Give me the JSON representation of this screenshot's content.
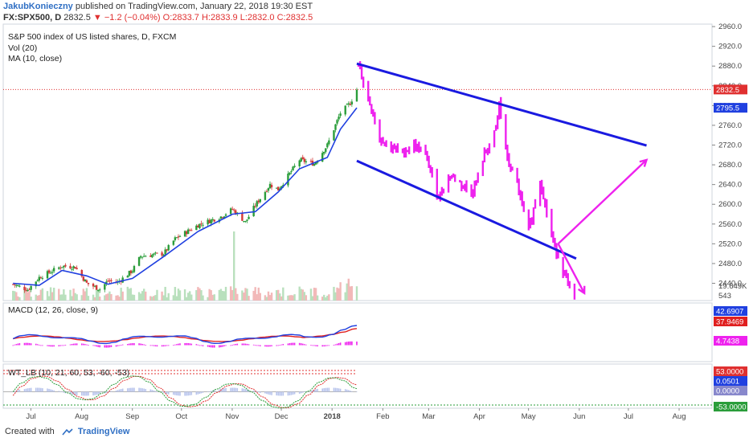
{
  "header": {
    "author": "JakubKonieczny",
    "published": "published on TradingView.com, January 22, 2018 19:30 EST",
    "symbol": "FX:SPX500, D",
    "last": "2832.5",
    "change": "−1.2 (−0.04%)",
    "open": "O:2833.7",
    "high": "H:2833.9",
    "low": "L:2832.0",
    "close": "C:2832.5"
  },
  "legends": {
    "title": "S&P 500 index of US listed shares, D, FXCM",
    "vol": "Vol (20)",
    "ma": "MA (10, close)",
    "macd": "MACD (12, 26, close, 9)",
    "wt": "WT_LB (10, 21, 60, 53, -60, -53)"
  },
  "footer": {
    "created": "Created with",
    "brand": "TradingView"
  },
  "colors": {
    "up": "#2a9d3a",
    "down": "#d33a3a",
    "ma": "#2040e0",
    "channel": "#1a1ae0",
    "projection": "#ee22ee",
    "macd_line": "#2040e0",
    "signal_line": "#e02020"
  },
  "chart_data": {
    "type": "candlestick",
    "price_axis": {
      "ticks": [
        "2960.0",
        "2920.0",
        "2880.0",
        "2840.0",
        "2800.0",
        "2760.0",
        "2720.0",
        "2680.0",
        "2640.0",
        "2600.0",
        "2560.0",
        "2520.0",
        "2480.0",
        "2440.0"
      ],
      "ylim": [
        2405,
        2965
      ]
    },
    "price_tags": [
      {
        "label": "2832.5",
        "value": 2832.5,
        "color": "#e03030"
      },
      {
        "label": "2795.5",
        "value": 2795.5,
        "color": "#2040e0"
      }
    ],
    "volume_tags": [
      {
        "label": "19.649K",
        "color": "#888888"
      },
      {
        "label": "543",
        "color": "#e08888"
      }
    ],
    "macd_tags": [
      {
        "label": "42.6907",
        "color": "#2040e0"
      },
      {
        "label": "37.9469",
        "color": "#e02020"
      },
      {
        "label": "4.7438",
        "color": "#ee22ee"
      }
    ],
    "wt_tags": [
      {
        "label": "53.0000",
        "color": "#e03030"
      },
      {
        "label": "0.0501",
        "color": "#2040e0"
      },
      {
        "label": "0.0000",
        "color": "#8888cc"
      },
      {
        "label": "-53.0000",
        "color": "#2a9d3a"
      }
    ],
    "time_axis": [
      "Jul",
      "Aug",
      "Sep",
      "Oct",
      "Nov",
      "Dec",
      "2018",
      "Feb",
      "Mar",
      "Apr",
      "May",
      "Jun",
      "Jul",
      "Aug"
    ],
    "price_series_anchors": [
      [
        "2017-06-26",
        2438
      ],
      [
        "2017-07-05",
        2427
      ],
      [
        "2017-07-12",
        2452
      ],
      [
        "2017-07-26",
        2475
      ],
      [
        "2017-08-03",
        2473
      ],
      [
        "2017-08-10",
        2440
      ],
      [
        "2017-08-18",
        2428
      ],
      [
        "2017-08-23",
        2445
      ],
      [
        "2017-08-29",
        2442
      ],
      [
        "2017-09-07",
        2466
      ],
      [
        "2017-09-12",
        2495
      ],
      [
        "2017-09-26",
        2500
      ],
      [
        "2017-10-03",
        2530
      ],
      [
        "2017-10-17",
        2558
      ],
      [
        "2017-10-31",
        2575
      ],
      [
        "2017-11-07",
        2590
      ],
      [
        "2017-11-15",
        2564
      ],
      [
        "2017-11-21",
        2598
      ],
      [
        "2017-11-30",
        2640
      ],
      [
        "2017-12-05",
        2630
      ],
      [
        "2017-12-18",
        2690
      ],
      [
        "2017-12-27",
        2682
      ],
      [
        "2018-01-04",
        2720
      ],
      [
        "2018-01-12",
        2785
      ],
      [
        "2018-01-18",
        2805
      ],
      [
        "2018-01-22",
        2832.5
      ]
    ],
    "ma_anchors": [
      [
        "2017-06-26",
        2440
      ],
      [
        "2017-07-12",
        2436
      ],
      [
        "2017-07-26",
        2466
      ],
      [
        "2017-08-10",
        2455
      ],
      [
        "2017-08-23",
        2438
      ],
      [
        "2017-09-07",
        2450
      ],
      [
        "2017-09-26",
        2494
      ],
      [
        "2017-10-17",
        2545
      ],
      [
        "2017-11-07",
        2580
      ],
      [
        "2017-11-21",
        2585
      ],
      [
        "2017-12-05",
        2625
      ],
      [
        "2017-12-18",
        2672
      ],
      [
        "2018-01-04",
        2695
      ],
      [
        "2018-01-12",
        2752
      ],
      [
        "2018-01-22",
        2795.5
      ]
    ],
    "projection_anchors": [
      [
        "2018-01-23",
        2880
      ],
      [
        "2018-01-29",
        2815
      ],
      [
        "2018-02-05",
        2735
      ],
      [
        "2018-02-12",
        2715
      ],
      [
        "2018-02-19",
        2705
      ],
      [
        "2018-02-26",
        2720
      ],
      [
        "2018-03-05",
        2700
      ],
      [
        "2018-03-13",
        2615
      ],
      [
        "2018-03-20",
        2660
      ],
      [
        "2018-03-27",
        2640
      ],
      [
        "2018-04-03",
        2625
      ],
      [
        "2018-04-10",
        2700
      ],
      [
        "2018-04-17",
        2750
      ],
      [
        "2018-04-19",
        2805
      ],
      [
        "2018-04-24",
        2690
      ],
      [
        "2018-04-30",
        2640
      ],
      [
        "2018-05-07",
        2545
      ],
      [
        "2018-05-14",
        2650
      ],
      [
        "2018-05-21",
        2535
      ],
      [
        "2018-05-28",
        2465
      ],
      [
        "2018-06-04",
        2405
      ]
    ],
    "channel_lines": [
      {
        "from": [
          "2018-01-22",
          2885
        ],
        "to": [
          "2018-07-18",
          2719
        ]
      },
      {
        "from": [
          "2018-01-22",
          2688
        ],
        "to": [
          "2018-06-05",
          2490
        ]
      }
    ],
    "projection_arrows": [
      {
        "from": [
          "2018-05-25",
          2520
        ],
        "to": [
          "2018-07-18",
          2690
        ]
      },
      {
        "from": [
          "2018-05-25",
          2520
        ],
        "to": [
          "2018-06-10",
          2420
        ]
      }
    ],
    "volume_spike": {
      "date": "2017-11-08"
    },
    "xlim": [
      "2017-06-20",
      "2018-08-27"
    ]
  }
}
